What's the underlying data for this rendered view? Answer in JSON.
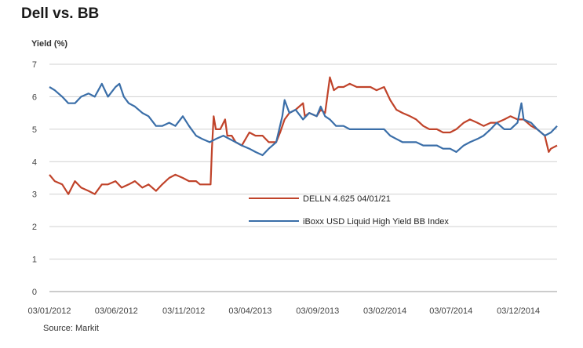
{
  "chart_data": {
    "type": "line",
    "title": "Dell vs. BB",
    "ylabel": "Yield (%)",
    "xlabel": "",
    "source": "Source: Markit",
    "ylim": [
      0,
      7
    ],
    "yticks": [
      "0",
      "1",
      "2",
      "3",
      "4",
      "5",
      "6",
      "7"
    ],
    "x_tick_labels": [
      "03/01/2012",
      "03/06/2012",
      "03/11/2012",
      "03/04/2013",
      "03/09/2013",
      "03/02/2014",
      "03/07/2014",
      "03/12/2014"
    ],
    "x_tick_dates": [
      "2012-01-03",
      "2012-06-03",
      "2012-11-03",
      "2013-04-03",
      "2013-09-03",
      "2014-02-03",
      "2014-07-03",
      "2014-12-03"
    ],
    "x_range": [
      "2012-01-03",
      "2015-03-01"
    ],
    "grid": "horizontal",
    "legend_position": "center-right",
    "series": [
      {
        "name": "DELLN 4.625 04/01/21",
        "color": "#c0432a",
        "points": [
          [
            "2012-01-03",
            3.6
          ],
          [
            "2012-01-15",
            3.4
          ],
          [
            "2012-02-01",
            3.3
          ],
          [
            "2012-02-15",
            3.0
          ],
          [
            "2012-03-01",
            3.4
          ],
          [
            "2012-03-15",
            3.2
          ],
          [
            "2012-04-01",
            3.1
          ],
          [
            "2012-04-15",
            3.0
          ],
          [
            "2012-05-01",
            3.3
          ],
          [
            "2012-05-15",
            3.3
          ],
          [
            "2012-06-01",
            3.4
          ],
          [
            "2012-06-15",
            3.2
          ],
          [
            "2012-07-01",
            3.3
          ],
          [
            "2012-07-15",
            3.4
          ],
          [
            "2012-08-01",
            3.2
          ],
          [
            "2012-08-15",
            3.3
          ],
          [
            "2012-09-01",
            3.1
          ],
          [
            "2012-09-15",
            3.3
          ],
          [
            "2012-10-01",
            3.5
          ],
          [
            "2012-10-15",
            3.6
          ],
          [
            "2012-11-01",
            3.5
          ],
          [
            "2012-11-15",
            3.4
          ],
          [
            "2012-12-01",
            3.4
          ],
          [
            "2012-12-10",
            3.3
          ],
          [
            "2013-01-03",
            3.3
          ],
          [
            "2013-01-06",
            4.4
          ],
          [
            "2013-01-10",
            5.4
          ],
          [
            "2013-01-15",
            5.0
          ],
          [
            "2013-01-25",
            5.0
          ],
          [
            "2013-02-05",
            5.3
          ],
          [
            "2013-02-10",
            4.8
          ],
          [
            "2013-02-20",
            4.8
          ],
          [
            "2013-03-01",
            4.6
          ],
          [
            "2013-03-15",
            4.5
          ],
          [
            "2013-04-01",
            4.9
          ],
          [
            "2013-04-15",
            4.8
          ],
          [
            "2013-05-01",
            4.8
          ],
          [
            "2013-05-15",
            4.6
          ],
          [
            "2013-06-01",
            4.6
          ],
          [
            "2013-06-10",
            4.9
          ],
          [
            "2013-06-20",
            5.3
          ],
          [
            "2013-07-01",
            5.5
          ],
          [
            "2013-07-15",
            5.6
          ],
          [
            "2013-08-01",
            5.8
          ],
          [
            "2013-08-05",
            5.4
          ],
          [
            "2013-08-15",
            5.5
          ],
          [
            "2013-09-01",
            5.4
          ],
          [
            "2013-09-10",
            5.6
          ],
          [
            "2013-09-20",
            5.5
          ],
          [
            "2013-09-25",
            6.0
          ],
          [
            "2013-10-01",
            6.6
          ],
          [
            "2013-10-10",
            6.2
          ],
          [
            "2013-10-20",
            6.3
          ],
          [
            "2013-11-01",
            6.3
          ],
          [
            "2013-11-15",
            6.4
          ],
          [
            "2013-12-01",
            6.3
          ],
          [
            "2013-12-15",
            6.3
          ],
          [
            "2014-01-01",
            6.3
          ],
          [
            "2014-01-15",
            6.2
          ],
          [
            "2014-02-01",
            6.3
          ],
          [
            "2014-02-15",
            5.9
          ],
          [
            "2014-03-01",
            5.6
          ],
          [
            "2014-03-15",
            5.5
          ],
          [
            "2014-04-01",
            5.4
          ],
          [
            "2014-04-15",
            5.3
          ],
          [
            "2014-05-01",
            5.1
          ],
          [
            "2014-05-15",
            5.0
          ],
          [
            "2014-06-01",
            5.0
          ],
          [
            "2014-06-15",
            4.9
          ],
          [
            "2014-07-01",
            4.9
          ],
          [
            "2014-07-15",
            5.0
          ],
          [
            "2014-08-01",
            5.2
          ],
          [
            "2014-08-15",
            5.3
          ],
          [
            "2014-09-01",
            5.2
          ],
          [
            "2014-09-15",
            5.1
          ],
          [
            "2014-10-01",
            5.2
          ],
          [
            "2014-10-15",
            5.2
          ],
          [
            "2014-11-01",
            5.3
          ],
          [
            "2014-11-15",
            5.4
          ],
          [
            "2014-12-01",
            5.3
          ],
          [
            "2014-12-15",
            5.3
          ],
          [
            "2015-01-01",
            5.1
          ],
          [
            "2015-01-15",
            5.0
          ],
          [
            "2015-02-01",
            4.8
          ],
          [
            "2015-02-10",
            4.3
          ],
          [
            "2015-02-15",
            4.4
          ],
          [
            "2015-03-01",
            4.5
          ]
        ]
      },
      {
        "name": "iBoxx USD Liquid High Yield BB Index",
        "color": "#3a6ea8",
        "points": [
          [
            "2012-01-03",
            6.3
          ],
          [
            "2012-01-15",
            6.2
          ],
          [
            "2012-02-01",
            6.0
          ],
          [
            "2012-02-15",
            5.8
          ],
          [
            "2012-03-01",
            5.8
          ],
          [
            "2012-03-15",
            6.0
          ],
          [
            "2012-04-01",
            6.1
          ],
          [
            "2012-04-15",
            6.0
          ],
          [
            "2012-05-01",
            6.4
          ],
          [
            "2012-05-15",
            6.0
          ],
          [
            "2012-06-01",
            6.3
          ],
          [
            "2012-06-10",
            6.4
          ],
          [
            "2012-06-20",
            6.0
          ],
          [
            "2012-07-01",
            5.8
          ],
          [
            "2012-07-15",
            5.7
          ],
          [
            "2012-08-01",
            5.5
          ],
          [
            "2012-08-15",
            5.4
          ],
          [
            "2012-09-01",
            5.1
          ],
          [
            "2012-09-15",
            5.1
          ],
          [
            "2012-10-01",
            5.2
          ],
          [
            "2012-10-15",
            5.1
          ],
          [
            "2012-11-01",
            5.4
          ],
          [
            "2012-11-15",
            5.1
          ],
          [
            "2012-12-01",
            4.8
          ],
          [
            "2012-12-15",
            4.7
          ],
          [
            "2013-01-01",
            4.6
          ],
          [
            "2013-01-15",
            4.7
          ],
          [
            "2013-02-01",
            4.8
          ],
          [
            "2013-02-15",
            4.7
          ],
          [
            "2013-03-01",
            4.6
          ],
          [
            "2013-03-15",
            4.5
          ],
          [
            "2013-04-01",
            4.4
          ],
          [
            "2013-04-15",
            4.3
          ],
          [
            "2013-05-01",
            4.2
          ],
          [
            "2013-05-15",
            4.4
          ],
          [
            "2013-06-01",
            4.6
          ],
          [
            "2013-06-15",
            5.4
          ],
          [
            "2013-06-20",
            5.9
          ],
          [
            "2013-07-01",
            5.5
          ],
          [
            "2013-07-15",
            5.6
          ],
          [
            "2013-08-01",
            5.3
          ],
          [
            "2013-08-15",
            5.5
          ],
          [
            "2013-09-01",
            5.4
          ],
          [
            "2013-09-10",
            5.7
          ],
          [
            "2013-09-20",
            5.4
          ],
          [
            "2013-10-01",
            5.3
          ],
          [
            "2013-10-15",
            5.1
          ],
          [
            "2013-11-01",
            5.1
          ],
          [
            "2013-11-15",
            5.0
          ],
          [
            "2013-12-01",
            5.0
          ],
          [
            "2014-01-01",
            5.0
          ],
          [
            "2014-01-15",
            5.0
          ],
          [
            "2014-02-01",
            5.0
          ],
          [
            "2014-02-15",
            4.8
          ],
          [
            "2014-03-01",
            4.7
          ],
          [
            "2014-03-15",
            4.6
          ],
          [
            "2014-04-01",
            4.6
          ],
          [
            "2014-04-15",
            4.6
          ],
          [
            "2014-05-01",
            4.5
          ],
          [
            "2014-05-15",
            4.5
          ],
          [
            "2014-06-01",
            4.5
          ],
          [
            "2014-06-15",
            4.4
          ],
          [
            "2014-07-01",
            4.4
          ],
          [
            "2014-07-15",
            4.3
          ],
          [
            "2014-08-01",
            4.5
          ],
          [
            "2014-08-15",
            4.6
          ],
          [
            "2014-09-01",
            4.7
          ],
          [
            "2014-09-15",
            4.8
          ],
          [
            "2014-10-01",
            5.0
          ],
          [
            "2014-10-15",
            5.2
          ],
          [
            "2014-11-01",
            5.0
          ],
          [
            "2014-11-15",
            5.0
          ],
          [
            "2014-12-01",
            5.2
          ],
          [
            "2014-12-10",
            5.8
          ],
          [
            "2014-12-15",
            5.3
          ],
          [
            "2015-01-01",
            5.2
          ],
          [
            "2015-01-15",
            5.0
          ],
          [
            "2015-02-01",
            4.8
          ],
          [
            "2015-02-15",
            4.9
          ],
          [
            "2015-03-01",
            5.1
          ]
        ]
      }
    ]
  }
}
